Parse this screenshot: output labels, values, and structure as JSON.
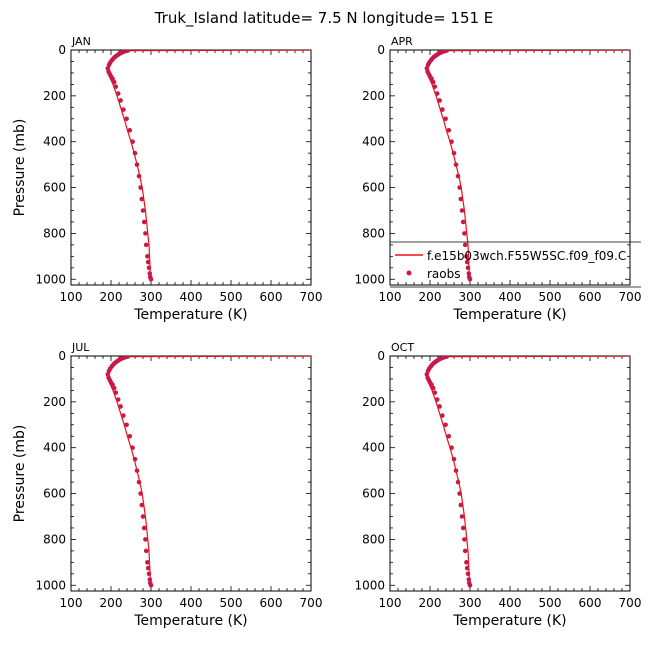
{
  "figure_title": "Truk_Island  latitude= 7.5 N longitude= 151 E",
  "legend": {
    "model_label": "f.e15b03wch.F55W5SC.f09_f09.C",
    "obs_label": "raobs"
  },
  "colors": {
    "model_line": "#ee1111",
    "obs_marker": "#c8194a",
    "axis": "#000000"
  },
  "chart_data": [
    {
      "type": "line",
      "title": "JAN",
      "xlabel": "Temperature (K)",
      "ylabel": "Pressure (mb)",
      "xlim": [
        100,
        700
      ],
      "ylim": [
        1025,
        0
      ],
      "xticks": [
        100,
        200,
        300,
        400,
        500,
        600,
        700
      ],
      "yticks": [
        0,
        200,
        400,
        600,
        800,
        1000
      ],
      "series": [
        {
          "name": "f.e15b03wch.F55W5SC.f09_f09.C",
          "kind": "line",
          "x": [
            243,
            234,
            226,
            217,
            207,
            198,
            192,
            197,
            205,
            215,
            224,
            233,
            241,
            250,
            258,
            265,
            272,
            278,
            282,
            286,
            289,
            292,
            295,
            297,
            299
          ],
          "y": [
            3,
            7,
            15,
            26,
            42,
            63,
            92,
            120,
            150,
            200,
            250,
            300,
            350,
            400,
            450,
            500,
            550,
            600,
            650,
            700,
            750,
            800,
            850,
            925,
            1000
          ]
        },
        {
          "name": "raobs",
          "kind": "points",
          "x": [
            242,
            238,
            234,
            230,
            226,
            222,
            218,
            214,
            210,
            206,
            202,
            198,
            195,
            192,
            194,
            197,
            200,
            204,
            208,
            212,
            218,
            224,
            231,
            239,
            247,
            254,
            260,
            265,
            270,
            274,
            277,
            280,
            283,
            286,
            288,
            291,
            293,
            295,
            297,
            298,
            300
          ],
          "y": [
            2,
            4,
            6,
            9,
            12,
            15,
            20,
            25,
            30,
            37,
            45,
            55,
            65,
            80,
            95,
            105,
            115,
            125,
            140,
            160,
            190,
            220,
            260,
            300,
            350,
            400,
            450,
            500,
            550,
            600,
            650,
            700,
            750,
            800,
            850,
            900,
            925,
            950,
            975,
            990,
            1000
          ]
        }
      ]
    },
    {
      "type": "line",
      "title": "APR",
      "xlabel": "Temperature (K)",
      "ylabel": "",
      "xlim": [
        100,
        700
      ],
      "ylim": [
        1025,
        0
      ],
      "xticks": [
        100,
        200,
        300,
        400,
        500,
        600,
        700
      ],
      "yticks": [
        0,
        200,
        400,
        600,
        800,
        1000
      ],
      "series": [
        {
          "name": "f.e15b03wch.F55W5SC.f09_f09.C",
          "kind": "line",
          "x": [
            243,
            234,
            226,
            217,
            207,
            198,
            192,
            197,
            205,
            215,
            224,
            233,
            241,
            250,
            258,
            265,
            272,
            278,
            282,
            286,
            289,
            292,
            295,
            297,
            299
          ],
          "y": [
            3,
            7,
            15,
            26,
            42,
            63,
            92,
            120,
            150,
            200,
            250,
            300,
            350,
            400,
            450,
            500,
            550,
            600,
            650,
            700,
            750,
            800,
            850,
            925,
            1000
          ]
        },
        {
          "name": "raobs",
          "kind": "points",
          "x": [
            242,
            238,
            234,
            230,
            226,
            222,
            218,
            214,
            210,
            206,
            202,
            198,
            195,
            192,
            194,
            197,
            200,
            204,
            208,
            212,
            218,
            224,
            231,
            239,
            247,
            254,
            260,
            265,
            270,
            274,
            277,
            280,
            283,
            286,
            288,
            291,
            293,
            295,
            297,
            298,
            300
          ],
          "y": [
            2,
            4,
            6,
            9,
            12,
            15,
            20,
            25,
            30,
            37,
            45,
            55,
            65,
            80,
            95,
            105,
            115,
            125,
            140,
            160,
            190,
            220,
            260,
            300,
            350,
            400,
            450,
            500,
            550,
            600,
            650,
            700,
            750,
            800,
            850,
            900,
            925,
            950,
            975,
            990,
            1000
          ]
        }
      ]
    },
    {
      "type": "line",
      "title": "JUL",
      "xlabel": "Temperature (K)",
      "ylabel": "Pressure (mb)",
      "xlim": [
        100,
        700
      ],
      "ylim": [
        1025,
        0
      ],
      "xticks": [
        100,
        200,
        300,
        400,
        500,
        600,
        700
      ],
      "yticks": [
        0,
        200,
        400,
        600,
        800,
        1000
      ],
      "series": [
        {
          "name": "f.e15b03wch.F55W5SC.f09_f09.C",
          "kind": "line",
          "x": [
            243,
            234,
            226,
            217,
            207,
            198,
            192,
            197,
            205,
            215,
            224,
            233,
            241,
            250,
            258,
            265,
            272,
            278,
            282,
            286,
            289,
            292,
            295,
            297,
            299
          ],
          "y": [
            3,
            7,
            15,
            26,
            42,
            63,
            92,
            120,
            150,
            200,
            250,
            300,
            350,
            400,
            450,
            500,
            550,
            600,
            650,
            700,
            750,
            800,
            850,
            925,
            1000
          ]
        },
        {
          "name": "raobs",
          "kind": "points",
          "x": [
            242,
            238,
            234,
            230,
            226,
            222,
            218,
            214,
            210,
            206,
            202,
            198,
            195,
            192,
            194,
            197,
            200,
            204,
            208,
            212,
            218,
            224,
            231,
            239,
            247,
            254,
            260,
            265,
            270,
            274,
            277,
            280,
            283,
            286,
            288,
            291,
            293,
            295,
            297,
            298,
            300
          ],
          "y": [
            2,
            4,
            6,
            9,
            12,
            15,
            20,
            25,
            30,
            37,
            45,
            55,
            65,
            80,
            95,
            105,
            115,
            125,
            140,
            160,
            190,
            220,
            260,
            300,
            350,
            400,
            450,
            500,
            550,
            600,
            650,
            700,
            750,
            800,
            850,
            900,
            925,
            950,
            975,
            990,
            1000
          ]
        }
      ]
    },
    {
      "type": "line",
      "title": "OCT",
      "xlabel": "Temperature (K)",
      "ylabel": "",
      "xlim": [
        100,
        700
      ],
      "ylim": [
        1025,
        0
      ],
      "xticks": [
        100,
        200,
        300,
        400,
        500,
        600,
        700
      ],
      "yticks": [
        0,
        200,
        400,
        600,
        800,
        1000
      ],
      "series": [
        {
          "name": "f.e15b03wch.F55W5SC.f09_f09.C",
          "kind": "line",
          "x": [
            243,
            234,
            226,
            217,
            207,
            198,
            192,
            197,
            205,
            215,
            224,
            233,
            241,
            250,
            258,
            265,
            272,
            278,
            282,
            286,
            289,
            292,
            295,
            297,
            299
          ],
          "y": [
            3,
            7,
            15,
            26,
            42,
            63,
            92,
            120,
            150,
            200,
            250,
            300,
            350,
            400,
            450,
            500,
            550,
            600,
            650,
            700,
            750,
            800,
            850,
            925,
            1000
          ]
        },
        {
          "name": "raobs",
          "kind": "points",
          "x": [
            242,
            238,
            234,
            230,
            226,
            222,
            218,
            214,
            210,
            206,
            202,
            198,
            195,
            192,
            194,
            197,
            200,
            204,
            208,
            212,
            218,
            224,
            231,
            239,
            247,
            254,
            260,
            265,
            270,
            274,
            277,
            280,
            283,
            286,
            288,
            291,
            293,
            295,
            297,
            298,
            300
          ],
          "y": [
            2,
            4,
            6,
            9,
            12,
            15,
            20,
            25,
            30,
            37,
            45,
            55,
            65,
            80,
            95,
            105,
            115,
            125,
            140,
            160,
            190,
            220,
            260,
            300,
            350,
            400,
            450,
            500,
            550,
            600,
            650,
            700,
            750,
            800,
            850,
            900,
            925,
            950,
            975,
            990,
            1000
          ]
        }
      ]
    }
  ]
}
